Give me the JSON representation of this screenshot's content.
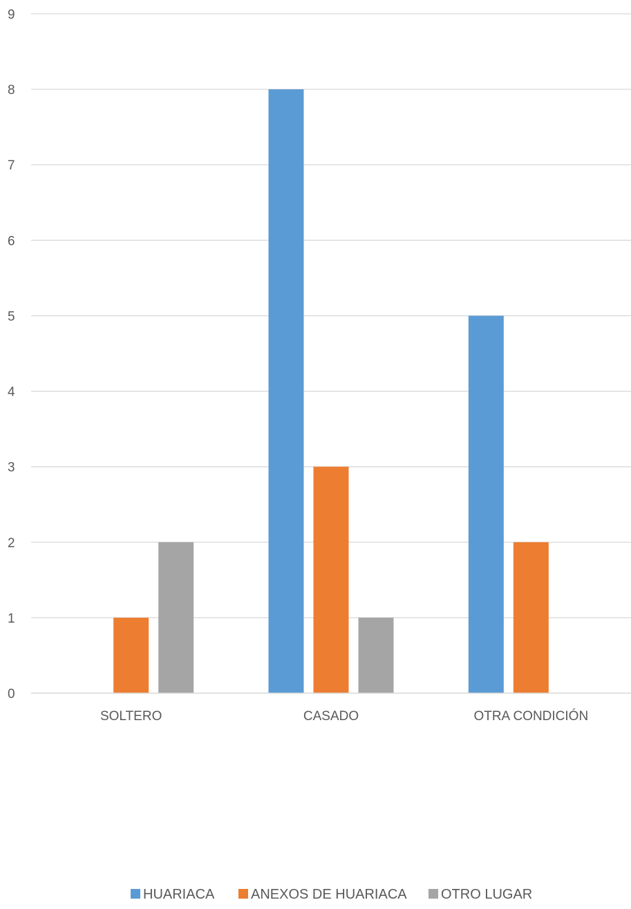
{
  "chart_data": {
    "type": "bar",
    "categories": [
      "SOLTERO",
      "CASADO",
      "OTRA CONDICIÓN"
    ],
    "series": [
      {
        "name": "HUARIACA",
        "values": [
          0,
          8,
          5
        ],
        "color": "#5B9BD5"
      },
      {
        "name": "ANEXOS DE HUARIACA",
        "values": [
          1,
          3,
          2
        ],
        "color": "#ED7D31"
      },
      {
        "name": "OTRO LUGAR",
        "values": [
          2,
          1,
          0
        ],
        "color": "#A5A5A5"
      }
    ],
    "ylim": [
      0,
      9
    ],
    "yticks": [
      0,
      1,
      2,
      3,
      4,
      5,
      6,
      7,
      8,
      9
    ],
    "grid": true,
    "legend": "bottom-center",
    "gridline_color": "#D9D9D9",
    "text_color": "#595959"
  }
}
